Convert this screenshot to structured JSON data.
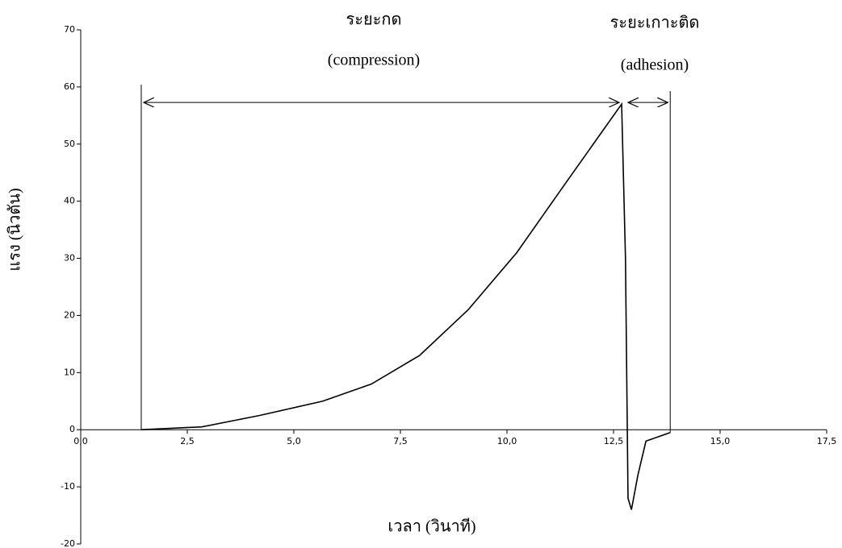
{
  "chart_data": {
    "type": "line",
    "x_label": "เวลา (วินาที)",
    "y_label": "แรง (นิวตัน)",
    "annotations": [
      "ระยะกด",
      "(compression)",
      "ระยะเกาะติด",
      "(adhesion)"
    ],
    "x": [
      1.42,
      2.84,
      4.2,
      5.68,
      6.82,
      7.95,
      9.09,
      10.23,
      11.36,
      12.31,
      12.69,
      12.78,
      12.84,
      12.92,
      13.07,
      13.26,
      13.83
    ],
    "series": [
      {
        "color": "#000000",
        "values": [
          0,
          0.5,
          2.5,
          5,
          8,
          13,
          21,
          31,
          43,
          53,
          57,
          30,
          -12,
          -14,
          -8,
          -2,
          -0.5
        ]
      }
    ],
    "xlim": [
      0,
      17.5
    ],
    "ylim": [
      -20,
      70
    ],
    "xticks": [
      {
        "value": 0,
        "label": "0,0"
      },
      {
        "value": 2.5,
        "label": "2,5"
      },
      {
        "value": 5,
        "label": "5,0"
      },
      {
        "value": 7.5,
        "label": "7,5"
      },
      {
        "value": 10,
        "label": "10,0"
      },
      {
        "value": 12.5,
        "label": "12,5"
      },
      {
        "value": 15,
        "label": "15,0"
      },
      {
        "value": 17.5,
        "label": "17,5"
      }
    ],
    "yticks": [
      70,
      60,
      50,
      40,
      30,
      20,
      10,
      0,
      -10,
      -20
    ]
  }
}
